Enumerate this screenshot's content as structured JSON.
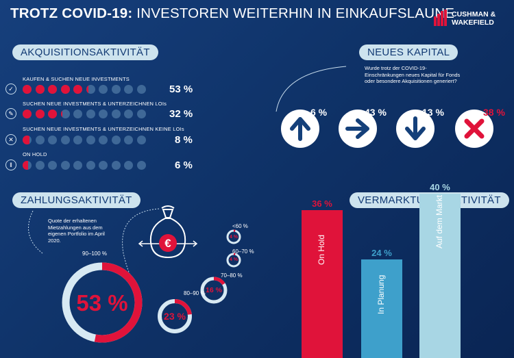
{
  "headline": {
    "bold": "TROTZ COVID-19:",
    "rest": " INVESTOREN WEITERHIN IN EINKAUFSLAUNE"
  },
  "logo": {
    "line1": "CUSHMAN &",
    "line2": "WAKEFIELD"
  },
  "colors": {
    "background": "#0f3369",
    "accent": "#e0133a",
    "pill": "#cde3ee",
    "dot_inactive": "#3f6897",
    "bar_light": "#a8d6e4",
    "bar_mid": "#3ea0cb"
  },
  "akquisition": {
    "title": "AKQUISITIONSAKTIVITÄT",
    "rows": [
      {
        "label": "KAUFEN & SUCHEN NEUE INVESTMENTS",
        "pct": "53 %",
        "icon": "check-icon"
      },
      {
        "label": "SUCHEN NEUE INVESTMENTS & UNTERZEICHNEN LOIs",
        "pct": "32 %",
        "icon": "pen-icon"
      },
      {
        "label": "SUCHEN NEUE INVESTMENTS & UNTERZEICHNEN KEINE LOIs",
        "pct": "8 %",
        "icon": "x-icon"
      },
      {
        "label": "ON HOLD",
        "pct": "6 %",
        "icon": "pause-icon"
      }
    ]
  },
  "kapital": {
    "title": "NEUES KAPITAL",
    "question": "Wurde trotz der COVID-19-Einschränkungen neues Kapital für Fonds oder besondere Akquisitionen generiert?",
    "items": [
      {
        "pct": "6 %",
        "icon": "arrow-up-icon",
        "color": "#ffffff"
      },
      {
        "pct": "43 %",
        "icon": "arrow-right-icon",
        "color": "#ffffff"
      },
      {
        "pct": "13 %",
        "icon": "arrow-down-icon",
        "color": "#ffffff"
      },
      {
        "pct": "38 %",
        "icon": "cross-icon",
        "color": "#e0133a"
      }
    ]
  },
  "zahlung": {
    "title": "ZAHLUNGSAKTIVITÄT",
    "note": "Quote der erhaltenen Mietzahlungen aus dem eigenen Portfolio im April 2020."
  },
  "vermarktung": {
    "title": "VERMARKTUNGSAKTIVITÄT"
  },
  "chart_data": [
    {
      "type": "bar",
      "title": "AKQUISITIONSAKTIVITÄT",
      "categories": [
        "KAUFEN & SUCHEN NEUE INVESTMENTS",
        "SUCHEN NEUE INVESTMENTS & UNTERZEICHNEN LOIs",
        "SUCHEN NEUE INVESTMENTS & UNTERZEICHNEN KEINE LOIs",
        "ON HOLD"
      ],
      "values": [
        53,
        32,
        8,
        6
      ],
      "unit": "%",
      "encoding": "10 dots per row, red share = value"
    },
    {
      "type": "bar",
      "title": "NEUES KAPITAL",
      "categories": [
        "arrow-up",
        "arrow-right",
        "arrow-down",
        "cross"
      ],
      "values": [
        6,
        43,
        13,
        38
      ],
      "unit": "%"
    },
    {
      "type": "pie",
      "title": "ZAHLUNGSAKTIVITÄT",
      "categories": [
        "90–100 %",
        "80–90 %",
        "70–80 %",
        "60–70 %",
        "<60 %"
      ],
      "labels": [
        "53 %",
        "23 %",
        "16 %",
        "4 %",
        "4 %"
      ],
      "values": [
        53,
        23,
        16,
        4,
        4
      ],
      "unit": "%"
    },
    {
      "type": "bar",
      "title": "VERMARKTUNGSAKTIVITÄT",
      "categories": [
        "On Hold",
        "In Planung",
        "Auf dem Markt"
      ],
      "labels": [
        "36 %",
        "24 %",
        "40 %"
      ],
      "values": [
        36,
        24,
        40
      ],
      "colors": [
        "#e0133a",
        "#3ea0cb",
        "#a8d6e4"
      ],
      "unit": "%"
    }
  ]
}
